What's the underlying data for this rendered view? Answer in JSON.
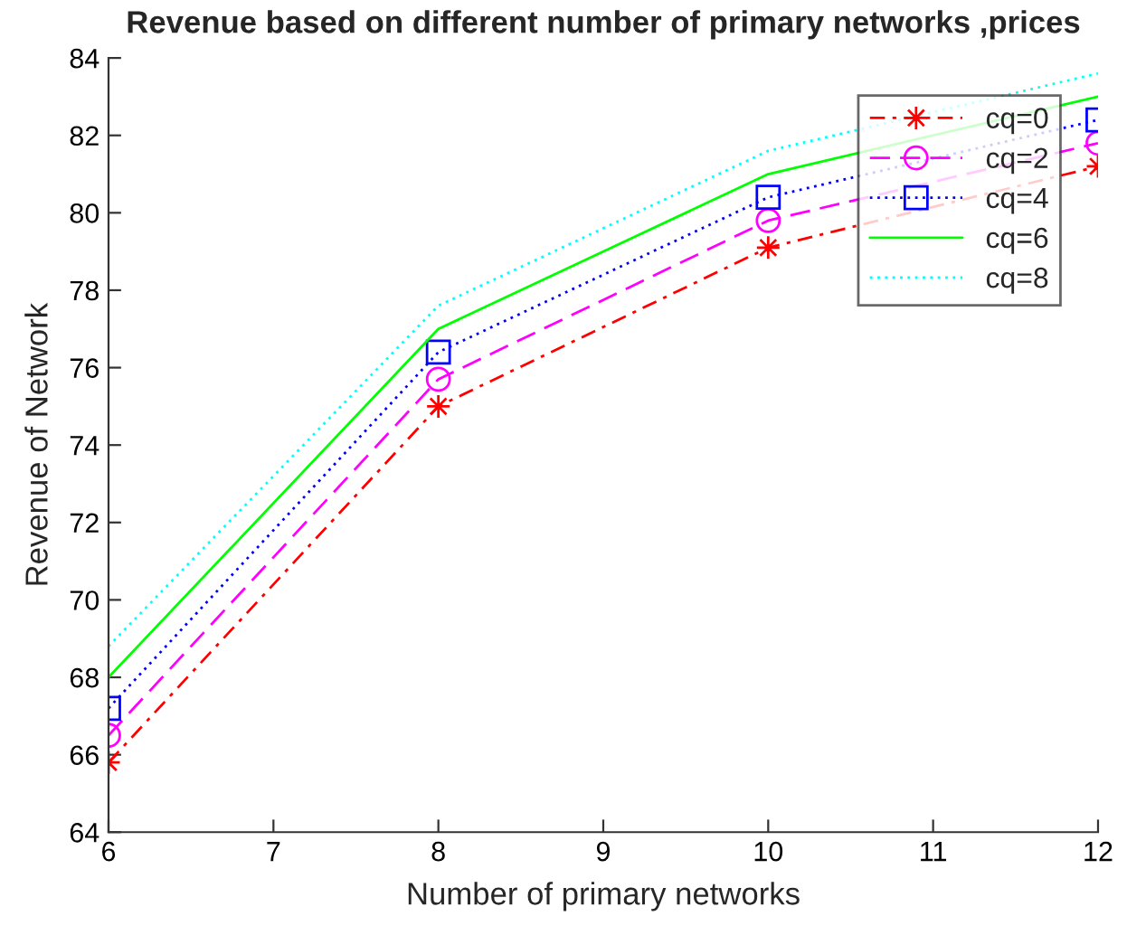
{
  "chart_data": {
    "type": "line",
    "title": "Revenue based on different number of primary networks ,prices",
    "xlabel": "Number of primary networks",
    "ylabel": "Revenue of Network",
    "x": [
      6,
      8,
      10,
      12
    ],
    "xlim": [
      6,
      12
    ],
    "xticks": [
      6,
      7,
      8,
      9,
      10,
      11,
      12
    ],
    "ylim": [
      64,
      84
    ],
    "yticks": [
      64,
      66,
      68,
      70,
      72,
      74,
      76,
      78,
      80,
      82,
      84
    ],
    "legend": "top right",
    "series": [
      {
        "name": "cq=0",
        "color": "#ff0000",
        "line_style": "dashdot",
        "marker": "star",
        "values": [
          65.8,
          75.0,
          79.1,
          81.2
        ]
      },
      {
        "name": "cq=2",
        "color": "#ff00ff",
        "line_style": "dashed",
        "marker": "circle",
        "values": [
          66.5,
          75.7,
          79.8,
          81.8
        ]
      },
      {
        "name": "cq=4",
        "color": "#0000ff",
        "line_style": "dotted",
        "marker": "square",
        "values": [
          67.2,
          76.4,
          80.4,
          82.4
        ]
      },
      {
        "name": "cq=6",
        "color": "#00ff00",
        "line_style": "solid",
        "values": [
          68.0,
          77.0,
          81.0,
          83.0
        ]
      },
      {
        "name": "cq=8",
        "color": "#00ffff",
        "line_style": "dotted",
        "values": [
          68.8,
          77.6,
          81.6,
          83.6
        ]
      }
    ]
  }
}
